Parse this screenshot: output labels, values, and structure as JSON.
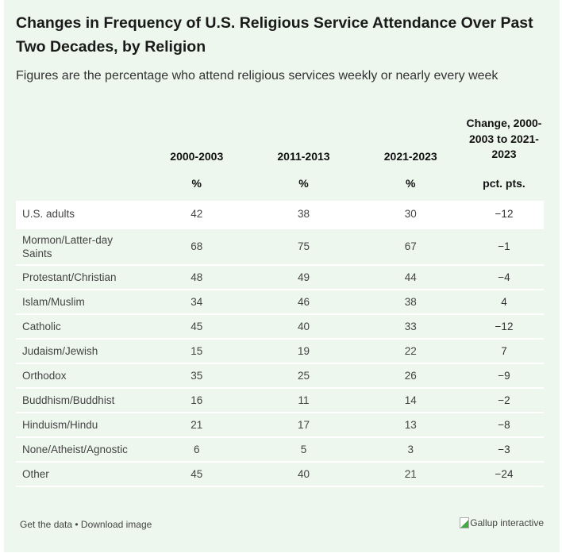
{
  "title": "Changes in Frequency of U.S. Religious Service Attendance Over Past Two Decades, by Religion",
  "subtitle": "Figures are the percentage who attend religious services weekly or nearly every week",
  "columns": [
    "",
    "2000-2003",
    "2011-2013",
    "2021-2023",
    "Change, 2000-2003 to 2021-2023"
  ],
  "units": [
    "",
    "%",
    "%",
    "%",
    "pct. pts."
  ],
  "rows": [
    [
      "U.S. adults",
      "42",
      "38",
      "30",
      "−12"
    ],
    [
      "Mormon/Latter-day Saints",
      "68",
      "75",
      "67",
      "−1"
    ],
    [
      "Protestant/Christian",
      "48",
      "49",
      "44",
      "−4"
    ],
    [
      "Islam/Muslim",
      "34",
      "46",
      "38",
      "4"
    ],
    [
      "Catholic",
      "45",
      "40",
      "33",
      "−12"
    ],
    [
      "Judaism/Jewish",
      "15",
      "19",
      "22",
      "7"
    ],
    [
      "Orthodox",
      "35",
      "25",
      "26",
      "−9"
    ],
    [
      "Buddhism/Buddhist",
      "16",
      "11",
      "14",
      "−2"
    ],
    [
      "Hinduism/Hindu",
      "21",
      "17",
      "13",
      "−8"
    ],
    [
      "None/Atheist/Agnostic",
      "6",
      "5",
      "3",
      "−3"
    ],
    [
      "Other",
      "45",
      "40",
      "21",
      "−24"
    ]
  ],
  "footer": {
    "get_data": "Get the data",
    "sep": " • ",
    "download": "Download image",
    "logo_alt": "Gallup interactive"
  },
  "colors": {
    "background": "#edf7ee",
    "highlight_row": "#ffffff"
  }
}
